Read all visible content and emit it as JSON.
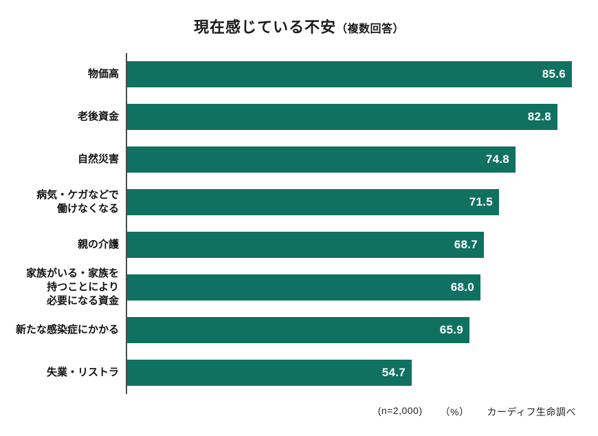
{
  "title": {
    "main": "現在感じている不安",
    "sub": "（複数回答）"
  },
  "footer": {
    "sample_size": "(n=2,000)",
    "unit": "（%）",
    "source": "カーディフ生命調べ"
  },
  "chart_data": {
    "type": "bar",
    "orientation": "horizontal",
    "title": "現在感じている不安（複数回答）",
    "xlabel": "",
    "ylabel": "",
    "unit": "%",
    "xlim": [
      0,
      100
    ],
    "grid": false,
    "legend": "none",
    "bar_color": "#117161",
    "axis_line_color": "#4a4a4a",
    "value_label_position": "inside-end",
    "value_label_color": "#ffffff",
    "sample_size": 2000,
    "source": "カーディフ生命調べ",
    "categories": [
      "物価高",
      "老後資金",
      "自然災害",
      "病気・ケガなどで働けなくなる",
      "親の介護",
      "家族がいる・家族を持つことにより必要になる資金",
      "新たな感染症にかかる",
      "失業・リストラ"
    ],
    "values": [
      85.6,
      82.8,
      74.8,
      71.5,
      68.7,
      68.0,
      65.9,
      54.7
    ],
    "bars": [
      {
        "label_display": "物価高",
        "value": 85.6,
        "value_label": "85.6"
      },
      {
        "label_display": "老後資金",
        "value": 82.8,
        "value_label": "82.8"
      },
      {
        "label_display": "自然災害",
        "value": 74.8,
        "value_label": "74.8"
      },
      {
        "label_display": "病気・ケガなどで\n働けなくなる",
        "value": 71.5,
        "value_label": "71.5"
      },
      {
        "label_display": "親の介護",
        "value": 68.7,
        "value_label": "68.7"
      },
      {
        "label_display": "家族がいる・家族を\n持つことにより\n必要になる資金",
        "value": 68.0,
        "value_label": "68.0"
      },
      {
        "label_display": "新たな感染症にかかる",
        "value": 65.9,
        "value_label": "65.9"
      },
      {
        "label_display": "失業・リストラ",
        "value": 54.7,
        "value_label": "54.7"
      }
    ]
  }
}
